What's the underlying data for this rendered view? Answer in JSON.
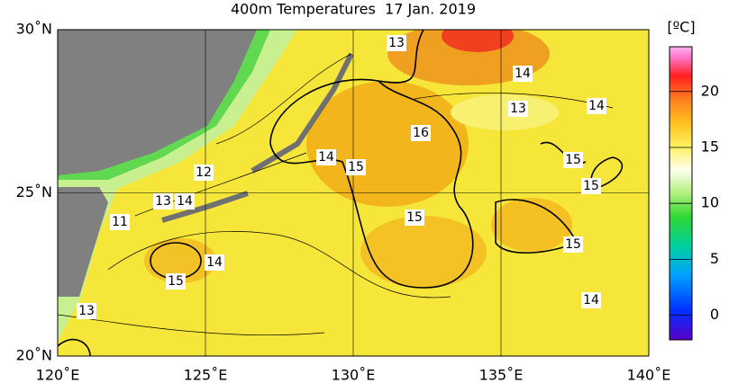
{
  "title": "400m Temperatures  17 Jan. 2019",
  "unit": "[ºC]",
  "xlim": [
    120,
    140
  ],
  "ylim": [
    20,
    30
  ],
  "xticks": [
    {
      "value": 120,
      "label": "120˚E"
    },
    {
      "value": 125,
      "label": "125˚E"
    },
    {
      "value": 130,
      "label": "130˚E"
    },
    {
      "value": 135,
      "label": "135˚E"
    },
    {
      "value": 140,
      "label": "140˚E"
    }
  ],
  "yticks": [
    {
      "value": 20,
      "label": "20˚N"
    },
    {
      "value": 25,
      "label": "25˚N"
    },
    {
      "value": 30,
      "label": "30˚N"
    }
  ],
  "colorbar": {
    "lim": [
      -2.2,
      24
    ],
    "ticks": [
      0,
      5,
      10,
      15,
      20
    ]
  },
  "contour_labels": [
    13,
    14,
    14,
    13,
    16,
    14,
    15,
    15,
    12,
    15,
    13,
    14,
    15,
    11,
    15,
    14,
    15,
    14,
    13
  ]
}
